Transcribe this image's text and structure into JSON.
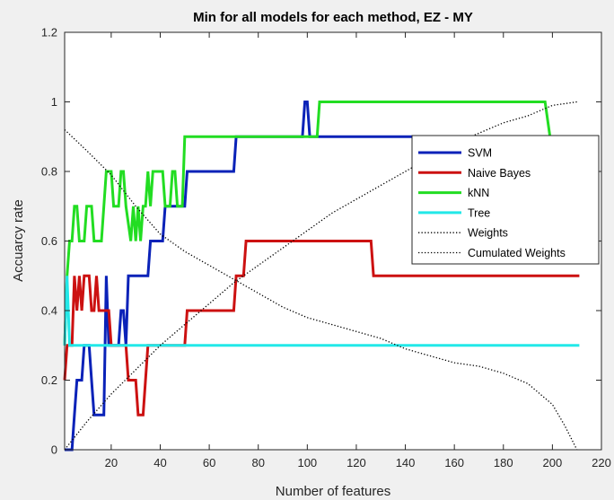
{
  "chart_data": {
    "type": "line",
    "title": "Min for all models for each method, EZ - MY",
    "xlabel": "Number of features",
    "ylabel": "Accuarcy rate",
    "xlim": [
      1,
      220
    ],
    "ylim": [
      0,
      1.2
    ],
    "xticks": [
      20,
      40,
      60,
      80,
      100,
      120,
      140,
      160,
      180,
      200,
      220
    ],
    "yticks": [
      0,
      0.2,
      0.4,
      0.6,
      0.8,
      1,
      1.2
    ],
    "xtick_labels": [
      "20",
      "40",
      "60",
      "80",
      "100",
      "120",
      "140",
      "160",
      "180",
      "200",
      "220"
    ],
    "ytick_labels": [
      "0",
      "0.2",
      "0.4",
      "0.6",
      "0.8",
      "1",
      "1.2"
    ],
    "grid": false,
    "legend_position": "right",
    "series": [
      {
        "name": "SVM",
        "color": "#0a22b8",
        "style": "solid",
        "points": [
          [
            1,
            0
          ],
          [
            4,
            0
          ],
          [
            5,
            0.1
          ],
          [
            6,
            0.2
          ],
          [
            8,
            0.2
          ],
          [
            9,
            0.3
          ],
          [
            11,
            0.3
          ],
          [
            12,
            0.2
          ],
          [
            13,
            0.1
          ],
          [
            17,
            0.1
          ],
          [
            18,
            0.5
          ],
          [
            19,
            0.3
          ],
          [
            23,
            0.3
          ],
          [
            24,
            0.4
          ],
          [
            25,
            0.4
          ],
          [
            26,
            0.3
          ],
          [
            27,
            0.5
          ],
          [
            35,
            0.5
          ],
          [
            36,
            0.6
          ],
          [
            41,
            0.6
          ],
          [
            42,
            0.7
          ],
          [
            50,
            0.7
          ],
          [
            51,
            0.8
          ],
          [
            70,
            0.8
          ],
          [
            71,
            0.9
          ],
          [
            98,
            0.9
          ],
          [
            99,
            1.0
          ],
          [
            100,
            1.0
          ],
          [
            101,
            0.9
          ],
          [
            211,
            0.9
          ]
        ]
      },
      {
        "name": "Naive Bayes",
        "color": "#cc1111",
        "style": "solid",
        "points": [
          [
            1,
            0.2
          ],
          [
            2,
            0.3
          ],
          [
            4,
            0.3
          ],
          [
            5,
            0.5
          ],
          [
            6,
            0.4
          ],
          [
            7,
            0.5
          ],
          [
            8,
            0.4
          ],
          [
            9,
            0.5
          ],
          [
            11,
            0.5
          ],
          [
            12,
            0.4
          ],
          [
            13,
            0.4
          ],
          [
            14,
            0.5
          ],
          [
            15,
            0.4
          ],
          [
            19,
            0.4
          ],
          [
            20,
            0.3
          ],
          [
            26,
            0.3
          ],
          [
            27,
            0.2
          ],
          [
            30,
            0.2
          ],
          [
            31,
            0.1
          ],
          [
            33,
            0.1
          ],
          [
            34,
            0.2
          ],
          [
            35,
            0.3
          ],
          [
            50,
            0.3
          ],
          [
            51,
            0.4
          ],
          [
            70,
            0.4
          ],
          [
            71,
            0.5
          ],
          [
            74,
            0.5
          ],
          [
            75,
            0.6
          ],
          [
            126,
            0.6
          ],
          [
            127,
            0.5
          ],
          [
            211,
            0.5
          ]
        ]
      },
      {
        "name": "kNN",
        "color": "#22dd22",
        "style": "solid",
        "points": [
          [
            1,
            0.3
          ],
          [
            2,
            0.5
          ],
          [
            3,
            0.6
          ],
          [
            4,
            0.6
          ],
          [
            5,
            0.7
          ],
          [
            6,
            0.7
          ],
          [
            7,
            0.6
          ],
          [
            9,
            0.6
          ],
          [
            10,
            0.7
          ],
          [
            12,
            0.7
          ],
          [
            13,
            0.6
          ],
          [
            16,
            0.6
          ],
          [
            17,
            0.7
          ],
          [
            18,
            0.8
          ],
          [
            20,
            0.8
          ],
          [
            21,
            0.7
          ],
          [
            23,
            0.7
          ],
          [
            24,
            0.8
          ],
          [
            25,
            0.8
          ],
          [
            26,
            0.7
          ],
          [
            28,
            0.6
          ],
          [
            29,
            0.7
          ],
          [
            30,
            0.6
          ],
          [
            31,
            0.7
          ],
          [
            32,
            0.6
          ],
          [
            33,
            0.7
          ],
          [
            34,
            0.7
          ],
          [
            35,
            0.8
          ],
          [
            36,
            0.7
          ],
          [
            37,
            0.8
          ],
          [
            41,
            0.8
          ],
          [
            42,
            0.7
          ],
          [
            44,
            0.7
          ],
          [
            45,
            0.8
          ],
          [
            46,
            0.8
          ],
          [
            47,
            0.7
          ],
          [
            49,
            0.7
          ],
          [
            50,
            0.9
          ],
          [
            104,
            0.9
          ],
          [
            105,
            1.0
          ],
          [
            197,
            1.0
          ],
          [
            199,
            0.9
          ],
          [
            211,
            0.9
          ]
        ]
      },
      {
        "name": "Tree",
        "color": "#22e8e8",
        "style": "solid",
        "points": [
          [
            1,
            0.3
          ],
          [
            2,
            0.5
          ],
          [
            3,
            0.3
          ],
          [
            211,
            0.3
          ]
        ]
      },
      {
        "name": "Weights",
        "color": "#000000",
        "style": "dotted",
        "points": [
          [
            1,
            0.92
          ],
          [
            10,
            0.86
          ],
          [
            20,
            0.79
          ],
          [
            30,
            0.7
          ],
          [
            40,
            0.62
          ],
          [
            50,
            0.57
          ],
          [
            60,
            0.53
          ],
          [
            70,
            0.49
          ],
          [
            80,
            0.45
          ],
          [
            90,
            0.41
          ],
          [
            100,
            0.38
          ],
          [
            110,
            0.36
          ],
          [
            120,
            0.34
          ],
          [
            130,
            0.32
          ],
          [
            140,
            0.29
          ],
          [
            150,
            0.27
          ],
          [
            160,
            0.25
          ],
          [
            170,
            0.24
          ],
          [
            180,
            0.22
          ],
          [
            190,
            0.19
          ],
          [
            200,
            0.13
          ],
          [
            205,
            0.07
          ],
          [
            210,
            0.0
          ]
        ]
      },
      {
        "name": "Cumulated Weights",
        "color": "#000000",
        "style": "dotted",
        "points": [
          [
            1,
            0.0
          ],
          [
            10,
            0.08
          ],
          [
            20,
            0.16
          ],
          [
            30,
            0.23
          ],
          [
            40,
            0.3
          ],
          [
            50,
            0.36
          ],
          [
            60,
            0.42
          ],
          [
            70,
            0.48
          ],
          [
            80,
            0.53
          ],
          [
            90,
            0.58
          ],
          [
            100,
            0.63
          ],
          [
            110,
            0.68
          ],
          [
            120,
            0.72
          ],
          [
            130,
            0.76
          ],
          [
            140,
            0.8
          ],
          [
            150,
            0.84
          ],
          [
            160,
            0.88
          ],
          [
            170,
            0.91
          ],
          [
            180,
            0.94
          ],
          [
            190,
            0.96
          ],
          [
            200,
            0.99
          ],
          [
            210,
            1.0
          ]
        ]
      }
    ]
  }
}
